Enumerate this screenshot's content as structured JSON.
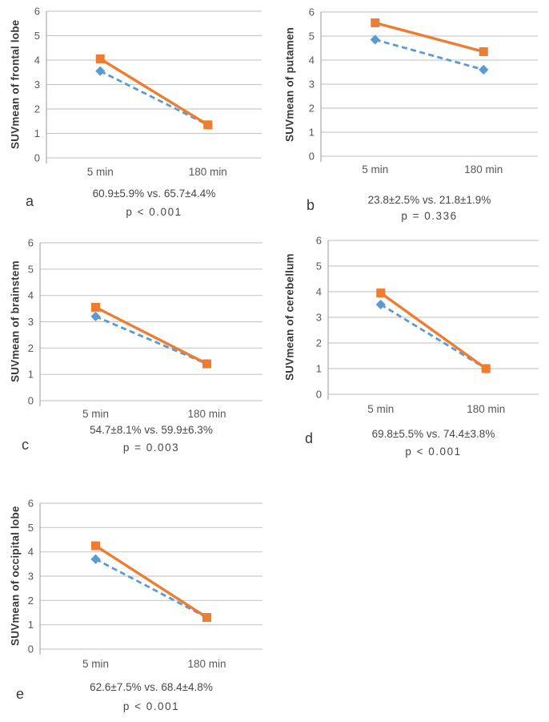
{
  "figure": {
    "background": "#ffffff",
    "gridline_color": "#c9c9c9",
    "axis_color": "#ababab",
    "tick_text_color": "#595959",
    "series_styles": [
      {
        "name": "solid-square-series",
        "color": "#ED7D31",
        "line": "solid",
        "marker": "square"
      },
      {
        "name": "dashed-diamond-series",
        "color": "#5B9BD5",
        "line": "dashed",
        "marker": "diamond"
      }
    ]
  },
  "chart_data": [
    {
      "type": "line",
      "panel_label": "a",
      "ylabel": "SUVmean of frontal lobe",
      "xlabel": "",
      "categories": [
        "5 min",
        "180 min"
      ],
      "yticks": [
        0,
        1,
        2,
        3,
        4,
        5,
        6
      ],
      "ylim": [
        0,
        6
      ],
      "grid": "horizontal",
      "legend": "none",
      "series": [
        {
          "name": "solid-square-orange",
          "color": "#ED7D31",
          "dash": false,
          "marker": "square",
          "values": [
            4.05,
            1.35
          ]
        },
        {
          "name": "dashed-diamond-blue",
          "color": "#5B9BD5",
          "dash": true,
          "marker": "diamond",
          "values": [
            3.55,
            1.35
          ]
        }
      ],
      "comparison": "60.9±5.9% vs. 65.7±4.4%",
      "p_value": "p < 0.001"
    },
    {
      "type": "line",
      "panel_label": "b",
      "ylabel": "SUVmean of putamen",
      "xlabel": "",
      "categories": [
        "5 min",
        "180 min"
      ],
      "yticks": [
        0,
        1,
        2,
        3,
        4,
        5,
        6
      ],
      "ylim": [
        0,
        6
      ],
      "grid": "horizontal",
      "legend": "none",
      "series": [
        {
          "name": "solid-square-orange",
          "color": "#ED7D31",
          "dash": false,
          "marker": "square",
          "values": [
            5.55,
            4.35
          ]
        },
        {
          "name": "dashed-diamond-blue",
          "color": "#5B9BD5",
          "dash": true,
          "marker": "diamond",
          "values": [
            4.85,
            3.6
          ]
        }
      ],
      "comparison": "23.8±2.5% vs. 21.8±1.9%",
      "p_value": "p = 0.336"
    },
    {
      "type": "line",
      "panel_label": "c",
      "ylabel": "SUVmean of brainstem",
      "xlabel": "",
      "categories": [
        "5 min",
        "180 min"
      ],
      "yticks": [
        0,
        1,
        2,
        3,
        4,
        5,
        6
      ],
      "ylim": [
        0,
        6
      ],
      "grid": "horizontal",
      "legend": "none",
      "series": [
        {
          "name": "solid-square-orange",
          "color": "#ED7D31",
          "dash": false,
          "marker": "square",
          "values": [
            3.55,
            1.4
          ]
        },
        {
          "name": "dashed-diamond-blue",
          "color": "#5B9BD5",
          "dash": true,
          "marker": "diamond",
          "values": [
            3.2,
            1.4
          ]
        }
      ],
      "comparison": "54.7±8.1% vs. 59.9±6.3%",
      "p_value": "p = 0.003"
    },
    {
      "type": "line",
      "panel_label": "d",
      "ylabel": "SUVmean of cerebellum",
      "xlabel": "",
      "categories": [
        "5 min",
        "180 min"
      ],
      "yticks": [
        0,
        1,
        2,
        3,
        4,
        5,
        6
      ],
      "ylim": [
        0,
        6
      ],
      "grid": "horizontal",
      "legend": "none",
      "series": [
        {
          "name": "solid-square-orange",
          "color": "#ED7D31",
          "dash": false,
          "marker": "square",
          "values": [
            3.95,
            1.0
          ]
        },
        {
          "name": "dashed-diamond-blue",
          "color": "#5B9BD5",
          "dash": true,
          "marker": "diamond",
          "values": [
            3.5,
            1.0
          ]
        }
      ],
      "comparison": "69.8±5.5% vs. 74.4±3.8%",
      "p_value": "p < 0.001"
    },
    {
      "type": "line",
      "panel_label": "e",
      "ylabel": "SUVmean of occipital lobe",
      "xlabel": "",
      "categories": [
        "5 min",
        "180 min"
      ],
      "yticks": [
        0,
        1,
        2,
        3,
        4,
        5,
        6
      ],
      "ylim": [
        0,
        6
      ],
      "grid": "horizontal",
      "legend": "none",
      "series": [
        {
          "name": "solid-square-orange",
          "color": "#ED7D31",
          "dash": false,
          "marker": "square",
          "values": [
            4.25,
            1.3
          ]
        },
        {
          "name": "dashed-diamond-blue",
          "color": "#5B9BD5",
          "dash": true,
          "marker": "diamond",
          "values": [
            3.7,
            1.3
          ]
        }
      ],
      "comparison": "62.6±7.5% vs. 68.4±4.8%",
      "p_value": "p < 0.001"
    }
  ]
}
